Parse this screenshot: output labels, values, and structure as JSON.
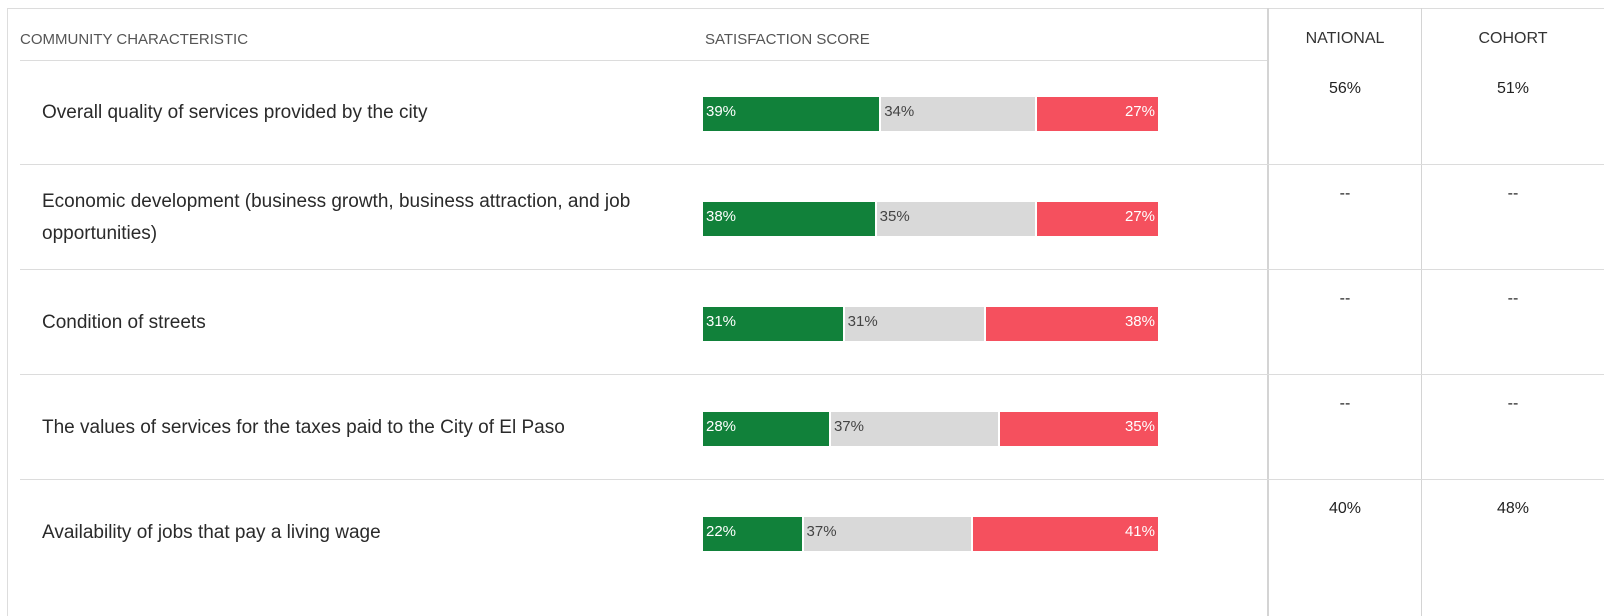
{
  "header": {
    "characteristic": "COMMUNITY CHARACTERISTIC",
    "score": "SATISFACTION SCORE",
    "national": "NATIONAL",
    "cohort": "COHORT"
  },
  "segment_colors": [
    "#11813a",
    "#d9d9d9",
    "#f5505e"
  ],
  "rows": [
    {
      "label": "Overall quality of services provided by the city",
      "values": [
        39,
        34,
        27
      ],
      "value_labels": [
        "39%",
        "34%",
        "27%"
      ],
      "national": "56%",
      "cohort": "51%"
    },
    {
      "label": "Economic development (business growth, business attraction, and job opportunities)",
      "values": [
        38,
        35,
        27
      ],
      "value_labels": [
        "38%",
        "35%",
        "27%"
      ],
      "national": "--",
      "cohort": "--"
    },
    {
      "label": "Condition of streets",
      "values": [
        31,
        31,
        38
      ],
      "value_labels": [
        "31%",
        "31%",
        "38%"
      ],
      "national": "--",
      "cohort": "--"
    },
    {
      "label": "The values of services for the taxes paid to the City of El Paso",
      "values": [
        28,
        37,
        35
      ],
      "value_labels": [
        "28%",
        "37%",
        "35%"
      ],
      "national": "--",
      "cohort": "--"
    },
    {
      "label": "Availability of jobs that pay a living wage",
      "values": [
        22,
        37,
        41
      ],
      "value_labels": [
        "22%",
        "37%",
        "41%"
      ],
      "national": "40%",
      "cohort": "48%"
    }
  ]
}
